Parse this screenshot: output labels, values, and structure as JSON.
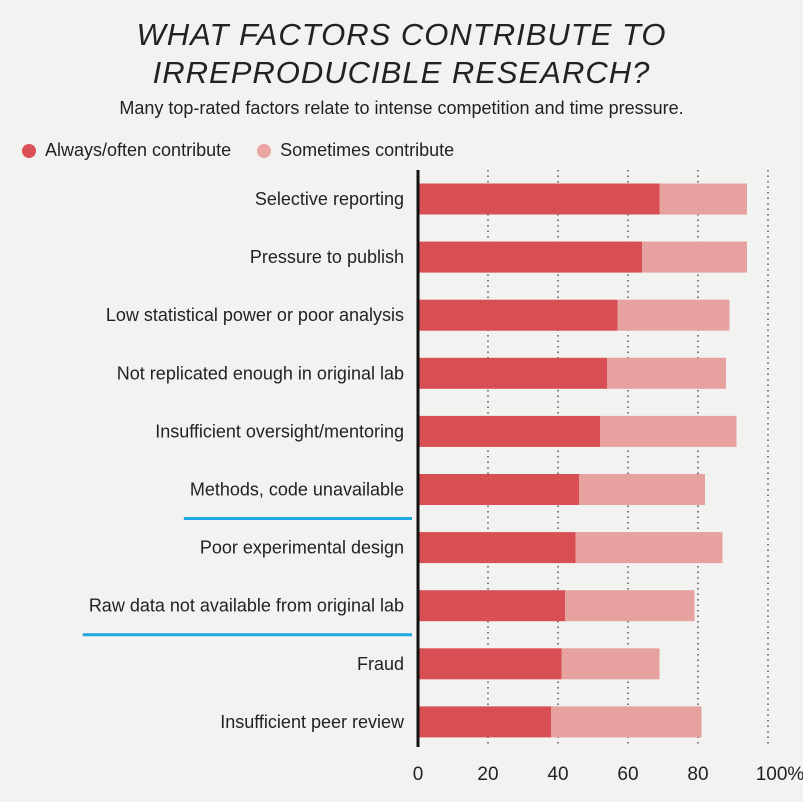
{
  "header": {
    "title_line1": "WHAT FACTORS CONTRIBUTE TO",
    "title_line2": "IRREPRODUCIBLE RESEARCH?",
    "subtitle": "Many top-rated factors relate to intense competition and time pressure."
  },
  "colors": {
    "always": "#dc5155",
    "sometimes": "#eba5a3",
    "highlight": "#1ea7e0"
  },
  "chart_data": {
    "type": "bar",
    "orientation": "horizontal",
    "stacked": true,
    "categories": [
      "Selective reporting",
      "Pressure to publish",
      "Low statistical power or poor analysis",
      "Not replicated enough in original lab",
      "Insufficient oversight/mentoring",
      "Methods, code unavailable",
      "Poor experimental design",
      "Raw data not available from original lab",
      "Fraud",
      "Insufficient peer review"
    ],
    "highlighted": [
      "Methods, code unavailable",
      "Raw data not available from original lab"
    ],
    "series": [
      {
        "name": "Always/often contribute",
        "values": [
          69,
          64,
          57,
          54,
          52,
          46,
          45,
          42,
          41,
          38
        ]
      },
      {
        "name": "Sometimes contribute",
        "values": [
          25,
          30,
          32,
          34,
          39,
          36,
          42,
          37,
          28,
          43
        ]
      }
    ],
    "xlim": [
      0,
      100
    ],
    "xticks": [
      "0",
      "20",
      "40",
      "60",
      "80",
      "100%"
    ],
    "grid": "dotted vertical",
    "legend": "top-left"
  }
}
